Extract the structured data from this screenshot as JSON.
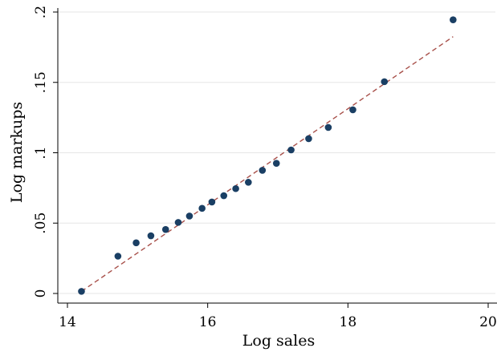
{
  "chart_data": {
    "type": "scatter",
    "xlabel": "Log sales",
    "ylabel": "Log markups",
    "xlim": [
      14,
      20
    ],
    "ylim": [
      0,
      0.2
    ],
    "x_ticks": [
      {
        "value": 14,
        "label": "14"
      },
      {
        "value": 16,
        "label": "16"
      },
      {
        "value": 18,
        "label": "18"
      },
      {
        "value": 20,
        "label": "20"
      }
    ],
    "y_ticks": [
      {
        "value": 0,
        "label": "0"
      },
      {
        "value": 0.05,
        "label": ".05"
      },
      {
        "value": 0.1,
        "label": ".1"
      },
      {
        "value": 0.15,
        "label": ".15"
      },
      {
        "value": 0.2,
        "label": ".2"
      }
    ],
    "grid": "horizontal",
    "points": [
      {
        "x": 14.2,
        "y": 0.0015
      },
      {
        "x": 14.72,
        "y": 0.0265
      },
      {
        "x": 14.98,
        "y": 0.036
      },
      {
        "x": 15.19,
        "y": 0.041
      },
      {
        "x": 15.4,
        "y": 0.0455
      },
      {
        "x": 15.58,
        "y": 0.0505
      },
      {
        "x": 15.74,
        "y": 0.055
      },
      {
        "x": 15.92,
        "y": 0.0605
      },
      {
        "x": 16.06,
        "y": 0.065
      },
      {
        "x": 16.23,
        "y": 0.0695
      },
      {
        "x": 16.4,
        "y": 0.0745
      },
      {
        "x": 16.58,
        "y": 0.079
      },
      {
        "x": 16.78,
        "y": 0.0875
      },
      {
        "x": 16.98,
        "y": 0.0925
      },
      {
        "x": 17.19,
        "y": 0.102
      },
      {
        "x": 17.44,
        "y": 0.11
      },
      {
        "x": 17.72,
        "y": 0.118
      },
      {
        "x": 18.07,
        "y": 0.1305
      },
      {
        "x": 18.52,
        "y": 0.1505
      },
      {
        "x": 19.5,
        "y": 0.1945
      }
    ],
    "fit_line": {
      "x": [
        14.2,
        19.5
      ],
      "y": [
        0.0015,
        0.1825
      ]
    },
    "colors": {
      "point": "#1a3f64",
      "fit_line": "#a8504a",
      "grid": "#e6e6e6",
      "axis": "#000000"
    }
  }
}
